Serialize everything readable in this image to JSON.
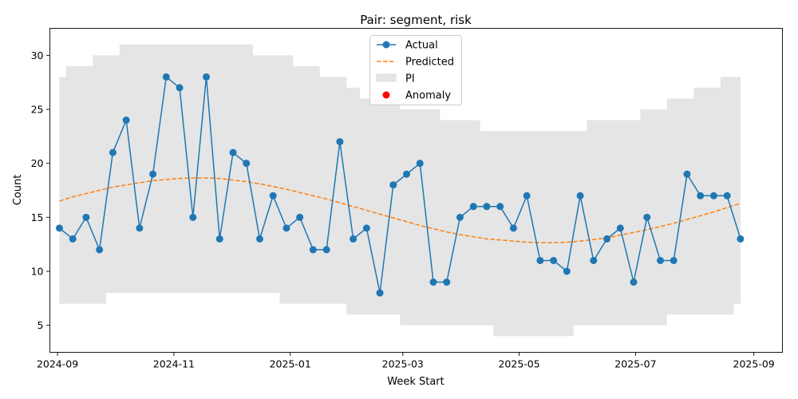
{
  "chart_data": {
    "type": "line",
    "title": "Pair: segment, risk",
    "xlabel": "Week Start",
    "ylabel": "Count",
    "x_range": [
      "2024-08-28",
      "2025-09-16"
    ],
    "ylim": [
      2.5,
      32.5
    ],
    "x_ticks": [
      {
        "date": "2024-09-01",
        "label": "2024-09"
      },
      {
        "date": "2024-11-01",
        "label": "2024-11"
      },
      {
        "date": "2025-01-01",
        "label": "2025-01"
      },
      {
        "date": "2025-03-01",
        "label": "2025-03"
      },
      {
        "date": "2025-05-01",
        "label": "2025-05"
      },
      {
        "date": "2025-07-01",
        "label": "2025-07"
      },
      {
        "date": "2025-09-01",
        "label": "2025-09"
      }
    ],
    "y_ticks": [
      5,
      10,
      15,
      20,
      25,
      30
    ],
    "grid": false,
    "legend_position": "top-center",
    "legend": [
      "Actual",
      "Predicted",
      "PI",
      "Anomaly"
    ],
    "colors": {
      "actual": "#1f77b4",
      "predicted": "#ff7f0e",
      "pi": "#e5e5e5",
      "anomaly": "#ff0000"
    },
    "dates": [
      "2024-09-02",
      "2024-09-09",
      "2024-09-16",
      "2024-09-23",
      "2024-09-30",
      "2024-10-07",
      "2024-10-14",
      "2024-10-21",
      "2024-10-28",
      "2024-11-04",
      "2024-11-11",
      "2024-11-18",
      "2024-11-25",
      "2024-12-02",
      "2024-12-09",
      "2024-12-16",
      "2024-12-23",
      "2024-12-30",
      "2025-01-06",
      "2025-01-13",
      "2025-01-20",
      "2025-01-27",
      "2025-02-03",
      "2025-02-10",
      "2025-02-17",
      "2025-02-24",
      "2025-03-03",
      "2025-03-10",
      "2025-03-17",
      "2025-03-24",
      "2025-03-31",
      "2025-04-07",
      "2025-04-14",
      "2025-04-21",
      "2025-04-28",
      "2025-05-05",
      "2025-05-12",
      "2025-05-19",
      "2025-05-26",
      "2025-06-02",
      "2025-06-09",
      "2025-06-16",
      "2025-06-23",
      "2025-06-30",
      "2025-07-07",
      "2025-07-14",
      "2025-07-21",
      "2025-07-28",
      "2025-08-04",
      "2025-08-11",
      "2025-08-18",
      "2025-08-25"
    ],
    "series": [
      {
        "name": "Actual",
        "values": [
          14,
          13,
          15,
          12,
          21,
          24,
          14,
          19,
          28,
          27,
          15,
          28,
          13,
          21,
          20,
          13,
          17,
          14,
          15,
          12,
          12,
          22,
          13,
          14,
          8,
          18,
          19,
          20,
          9,
          9,
          15,
          16,
          16,
          16,
          14,
          17,
          11,
          11,
          10,
          17,
          11,
          13,
          14,
          9,
          15,
          11,
          11,
          19,
          17,
          17,
          17,
          13
        ]
      },
      {
        "name": "Predicted",
        "values": [
          16.5,
          16.9,
          17.2,
          17.5,
          17.8,
          18.0,
          18.2,
          18.4,
          18.5,
          18.6,
          18.65,
          18.65,
          18.6,
          18.45,
          18.3,
          18.1,
          17.85,
          17.6,
          17.3,
          17.0,
          16.7,
          16.35,
          16.0,
          15.65,
          15.3,
          14.95,
          14.6,
          14.25,
          13.95,
          13.65,
          13.4,
          13.2,
          13.0,
          12.9,
          12.8,
          12.7,
          12.65,
          12.65,
          12.7,
          12.8,
          12.95,
          13.1,
          13.35,
          13.6,
          13.85,
          14.15,
          14.45,
          14.8,
          15.15,
          15.5,
          15.9,
          16.3
        ]
      },
      {
        "name": "PI",
        "lower": [
          7,
          7,
          7,
          7,
          8,
          8,
          8,
          8,
          8,
          8,
          8,
          8,
          8,
          8,
          8,
          8,
          8,
          7,
          7,
          7,
          7,
          7,
          6,
          6,
          6,
          6,
          5,
          5,
          5,
          5,
          5,
          5,
          5,
          4,
          4,
          4,
          4,
          4,
          4,
          5,
          5,
          5,
          5,
          5,
          5,
          5,
          6,
          6,
          6,
          6,
          6,
          7
        ],
        "upper": [
          28,
          29,
          29,
          30,
          30,
          31,
          31,
          31,
          31,
          31,
          31,
          31,
          31,
          31,
          31,
          30,
          30,
          30,
          29,
          29,
          28,
          28,
          27,
          26,
          26,
          26,
          25,
          25,
          25,
          24,
          24,
          24,
          23,
          23,
          23,
          23,
          23,
          23,
          23,
          23,
          24,
          24,
          24,
          24,
          25,
          25,
          26,
          26,
          27,
          27,
          28,
          28
        ]
      }
    ],
    "anomalies": []
  }
}
